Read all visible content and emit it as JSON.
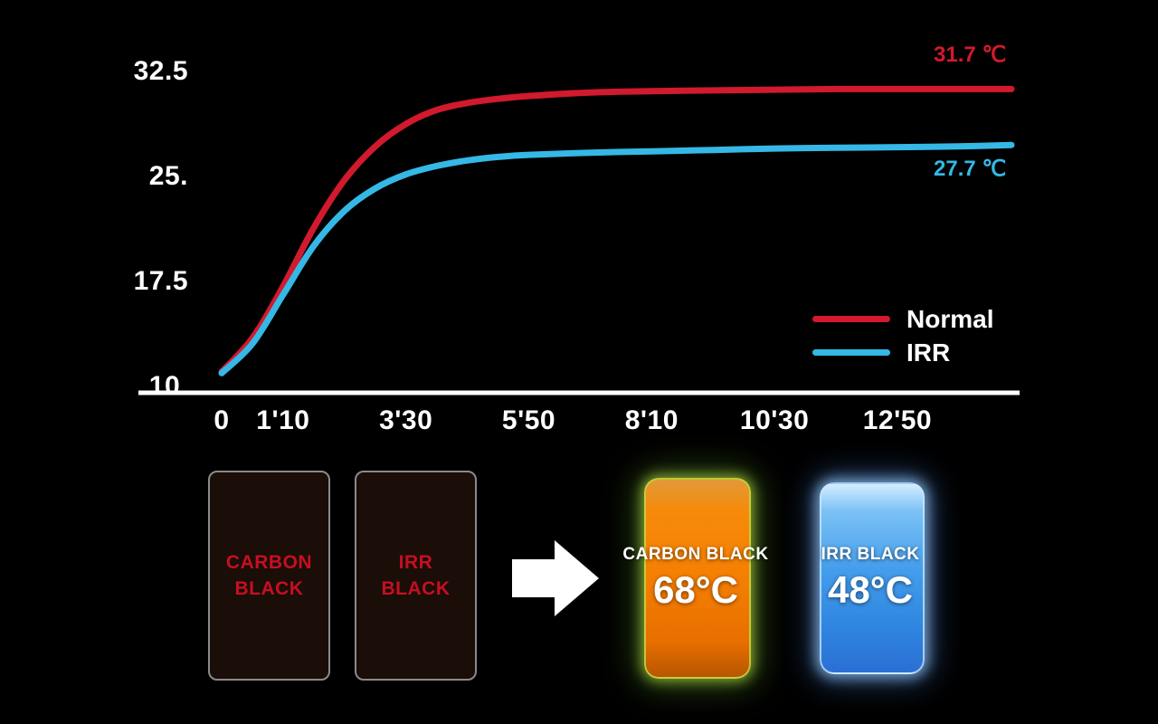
{
  "colors": {
    "background": "#000000",
    "normal_line": "#d11a2d",
    "irr_line": "#35b8e6",
    "axis": "#ffffff",
    "axis_text": "#ffffff",
    "sample_label": "#c60f22",
    "sample_border": "#8a8a8a",
    "sample_bg": "#1b0d07",
    "thermal_orange": "#f57f02",
    "thermal_blue": "#3390e6"
  },
  "chart_data": {
    "type": "line",
    "title": "",
    "xlabel": "",
    "ylabel": "",
    "x_range_seconds": [
      0,
      900
    ],
    "y_range": [
      10,
      33.5
    ],
    "grid": false,
    "legend_position": "right-middle",
    "x_ticks": [
      {
        "t": 0,
        "label": "0"
      },
      {
        "t": 70,
        "label": "1'10"
      },
      {
        "t": 210,
        "label": "3'30"
      },
      {
        "t": 350,
        "label": "5'50"
      },
      {
        "t": 490,
        "label": "8'10"
      },
      {
        "t": 630,
        "label": "10'30"
      },
      {
        "t": 770,
        "label": "12'50"
      }
    ],
    "y_ticks": [
      {
        "v": 32.5,
        "label": "32.5"
      },
      {
        "v": 25,
        "label": "25."
      },
      {
        "v": 17.5,
        "label": "17.5"
      },
      {
        "v": 10,
        "label": "10."
      }
    ],
    "series": [
      {
        "name": "Normal",
        "color": "#d11a2d",
        "end_label": "31.7 ℃",
        "points": [
          [
            0,
            11.5
          ],
          [
            35,
            13.9
          ],
          [
            70,
            17.6
          ],
          [
            105,
            21.8
          ],
          [
            140,
            25.2
          ],
          [
            175,
            27.6
          ],
          [
            210,
            29.2
          ],
          [
            245,
            30.2
          ],
          [
            280,
            30.7
          ],
          [
            315,
            31.0
          ],
          [
            350,
            31.2
          ],
          [
            420,
            31.45
          ],
          [
            490,
            31.55
          ],
          [
            560,
            31.6
          ],
          [
            630,
            31.65
          ],
          [
            700,
            31.7
          ],
          [
            770,
            31.7
          ],
          [
            840,
            31.7
          ],
          [
            900,
            31.7
          ]
        ]
      },
      {
        "name": "IRR",
        "color": "#35b8e6",
        "end_label": "27.7 ℃",
        "points": [
          [
            0,
            11.4
          ],
          [
            35,
            13.5
          ],
          [
            70,
            17.0
          ],
          [
            105,
            20.5
          ],
          [
            140,
            23.0
          ],
          [
            175,
            24.6
          ],
          [
            210,
            25.6
          ],
          [
            245,
            26.2
          ],
          [
            280,
            26.6
          ],
          [
            315,
            26.85
          ],
          [
            350,
            27.0
          ],
          [
            420,
            27.15
          ],
          [
            490,
            27.25
          ],
          [
            560,
            27.35
          ],
          [
            630,
            27.45
          ],
          [
            700,
            27.5
          ],
          [
            770,
            27.55
          ],
          [
            840,
            27.6
          ],
          [
            900,
            27.7
          ]
        ]
      }
    ]
  },
  "samples": {
    "carbon": {
      "line1": "CARBON",
      "line2": "BLACK"
    },
    "irr": {
      "line1": "IRR",
      "line2": "BLACK"
    }
  },
  "thermal": {
    "carbon": {
      "label": "CARBON BLACK",
      "temp": "68°C"
    },
    "irr": {
      "label": "IRR BLACK",
      "temp": "48°C"
    }
  }
}
